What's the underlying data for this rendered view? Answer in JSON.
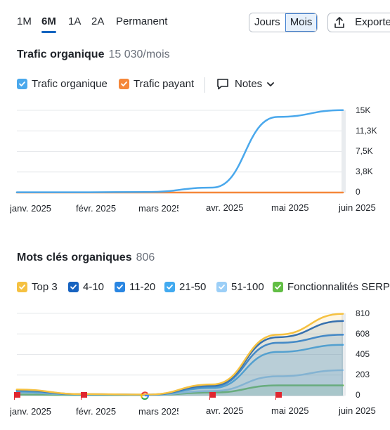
{
  "toolbar": {
    "ranges": [
      "1M",
      "6M",
      "1A",
      "2A",
      "Permanent"
    ],
    "active_range": "6M",
    "granularity": [
      "Jours",
      "Mois"
    ],
    "active_granularity": "Mois",
    "export_label": "Exporter"
  },
  "traffic": {
    "title": "Trafic organique",
    "value": "15 030/mois",
    "legend": {
      "organic": "Trafic organique",
      "paid": "Trafic payant",
      "notes": "Notes"
    }
  },
  "keywords": {
    "title": "Mots clés organiques",
    "value": "806",
    "legend": [
      "Top 3",
      "4-10",
      "11-20",
      "21-50",
      "51-100",
      "Fonctionnalités SERP"
    ]
  },
  "x_labels": [
    "janv. 2025",
    "févr. 2025",
    "mars 2025",
    "avr. 2025",
    "mai 2025",
    "juin 2025"
  ],
  "colors": {
    "organic": "#4aa8ec",
    "paid": "#f5873a",
    "top3": "#f5c141",
    "pos4_10": "#1763c0",
    "pos11_20": "#2a86e2",
    "pos21_50": "#42aaf0",
    "pos51_100": "#9ccff7",
    "serp": "#62be45",
    "accent": "#1565c0"
  },
  "icons": {
    "notes": "comment-icon",
    "export": "upload-icon",
    "event_google": "google-icon",
    "event_flag": "flag-icon"
  },
  "chart_data": [
    {
      "type": "line",
      "x": [
        "janv. 2025",
        "févr. 2025",
        "mars 2025",
        "avr. 2025",
        "mai 2025",
        "juin 2025"
      ],
      "y_ticks": [
        "0",
        "3,8K",
        "7,5K",
        "11,3K",
        "15K"
      ],
      "ylim": [
        0,
        15000
      ],
      "grid": true,
      "series": [
        {
          "name": "Trafic organique",
          "values": [
            50,
            50,
            100,
            900,
            13800,
            15030
          ]
        },
        {
          "name": "Trafic payant",
          "values": [
            0,
            0,
            0,
            0,
            0,
            0
          ]
        }
      ]
    },
    {
      "type": "area",
      "x": [
        "janv. 2025",
        "févr. 2025",
        "mars 2025",
        "avr. 2025",
        "mai 2025",
        "juin 2025"
      ],
      "y_ticks": [
        "0",
        "203",
        "405",
        "608",
        "810"
      ],
      "ylim": [
        0,
        810
      ],
      "grid": true,
      "series": [
        {
          "name": "Top 3",
          "values": [
            60,
            15,
            10,
            110,
            600,
            806
          ]
        },
        {
          "name": "4-10",
          "values": [
            55,
            14,
            9,
            100,
            575,
            735
          ]
        },
        {
          "name": "11-20",
          "values": [
            50,
            12,
            8,
            90,
            520,
            600
          ]
        },
        {
          "name": "21-50",
          "values": [
            40,
            10,
            7,
            75,
            430,
            500
          ]
        },
        {
          "name": "51-100",
          "values": [
            30,
            8,
            5,
            45,
            190,
            250
          ]
        },
        {
          "name": "Fonctionnalités SERP",
          "values": [
            10,
            5,
            4,
            30,
            100,
            100
          ]
        }
      ],
      "events": [
        "flag",
        "flag",
        "google",
        "flag",
        "flag"
      ]
    }
  ]
}
